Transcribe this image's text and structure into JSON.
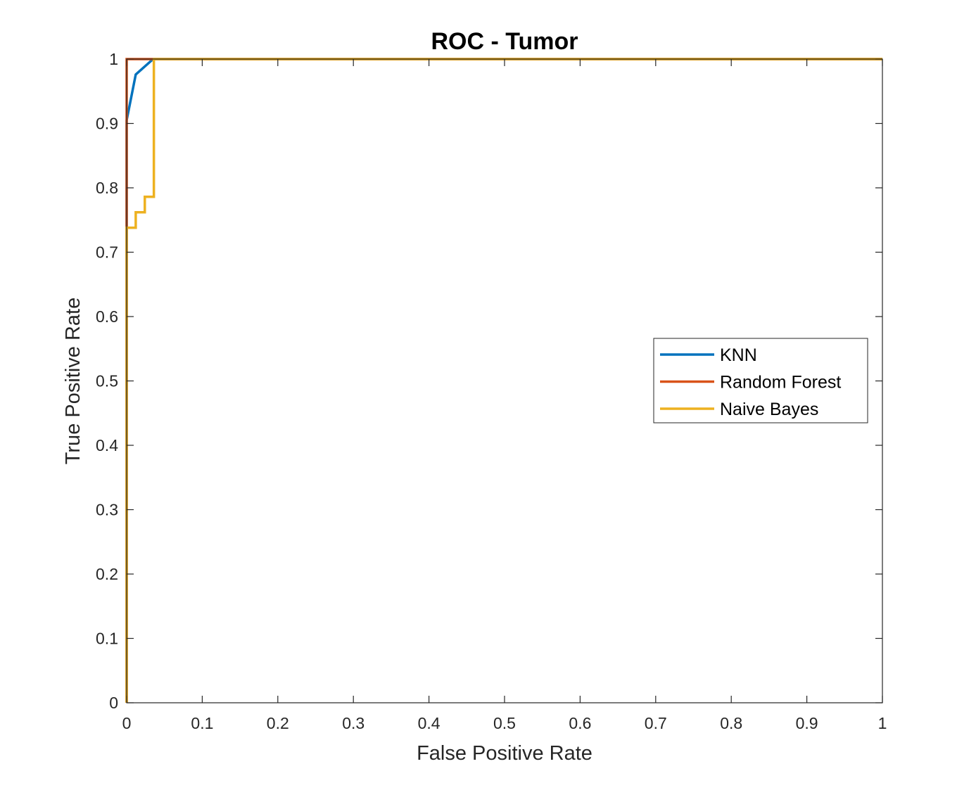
{
  "chart_data": {
    "type": "line",
    "title": "ROC - Tumor",
    "xlabel": "False Positive Rate",
    "ylabel": "True Positive Rate",
    "xlim": [
      0,
      1
    ],
    "ylim": [
      0,
      1
    ],
    "xticks": [
      "0",
      "0.1",
      "0.2",
      "0.3",
      "0.4",
      "0.5",
      "0.6",
      "0.7",
      "0.8",
      "0.9",
      "1"
    ],
    "yticks": [
      "0",
      "0.1",
      "0.2",
      "0.3",
      "0.4",
      "0.5",
      "0.6",
      "0.7",
      "0.8",
      "0.9",
      "1"
    ],
    "grid": false,
    "legend_position": "right",
    "series": [
      {
        "name": "KNN",
        "color": "#0072BD",
        "x": [
          0,
          0,
          0.012,
          0.035,
          1
        ],
        "y": [
          0,
          0.905,
          0.976,
          1,
          1
        ]
      },
      {
        "name": "Random Forest",
        "color": "#D95319",
        "x": [
          0,
          0,
          0,
          1
        ],
        "y": [
          0,
          0.74,
          1,
          1
        ]
      },
      {
        "name": "Naive Bayes",
        "color": "#EDB120",
        "x": [
          0,
          0,
          0.012,
          0.012,
          0.024,
          0.024,
          0.036,
          0.036,
          1
        ],
        "y": [
          0,
          0.738,
          0.738,
          0.762,
          0.762,
          0.786,
          0.786,
          1,
          1
        ]
      }
    ]
  }
}
